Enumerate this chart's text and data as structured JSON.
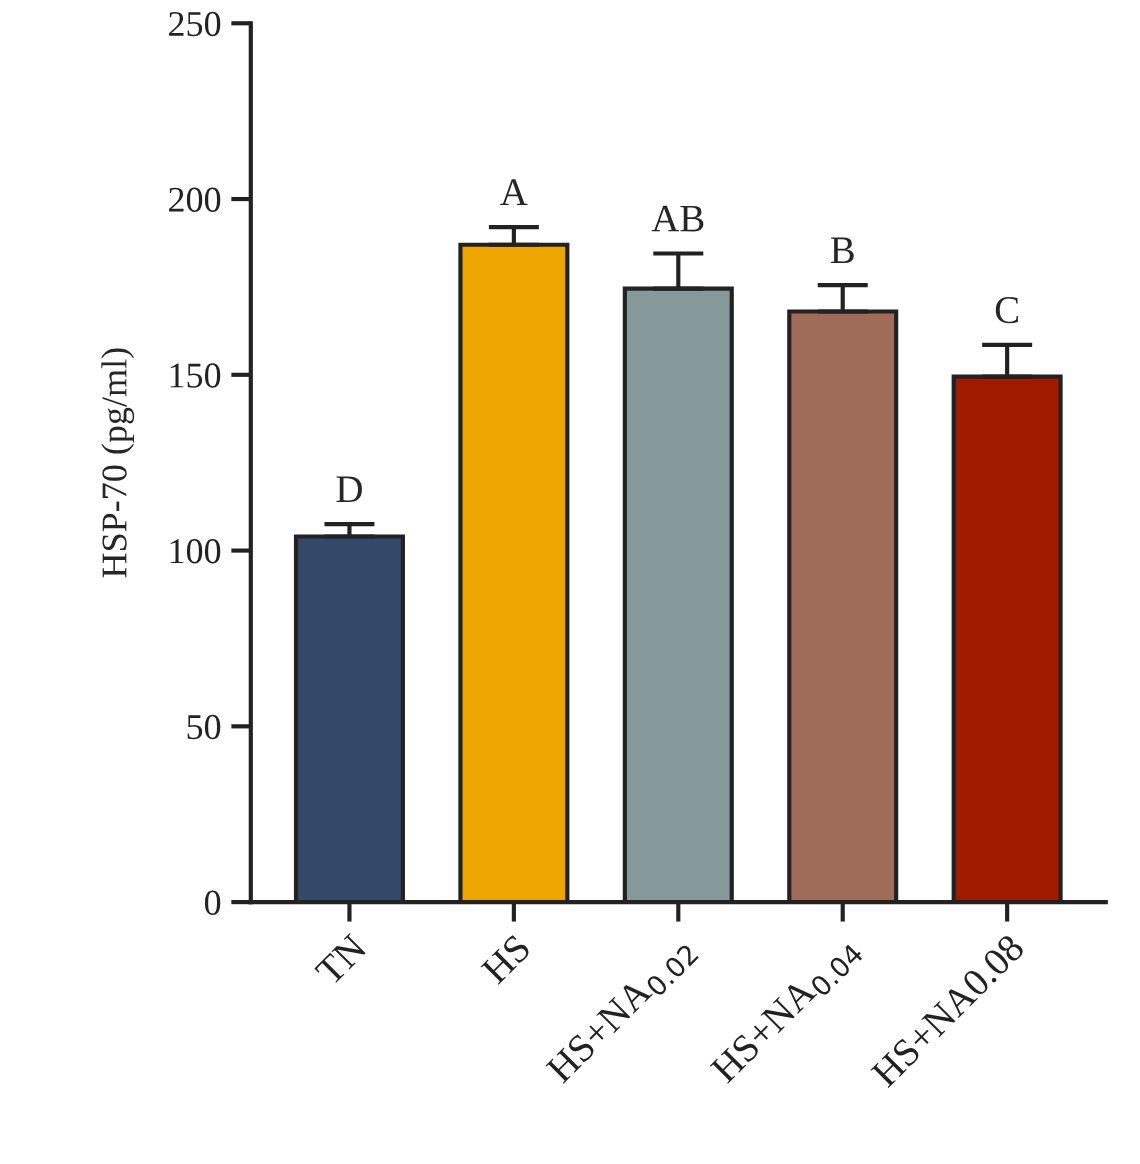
{
  "chart_data": {
    "type": "bar",
    "ylabel": "HSP-70 (pg/ml)",
    "categories": [
      "TN",
      "HS",
      "HS+NA$_{0.02}$",
      "HS+NA$_{0.04}$",
      "HS+NA0.08"
    ],
    "values": [
      104,
      187,
      174.5,
      168,
      149.5
    ],
    "colors": [
      "#34496a",
      "#eda500",
      "#85999a",
      "#a06c5a",
      "#a01a00"
    ],
    "errors": [
      [
        104,
        107.5
      ],
      [
        187,
        192
      ],
      [
        174.5,
        184.5
      ],
      [
        168,
        175.5
      ],
      [
        149.5,
        158.5
      ]
    ],
    "ylim": [
      0,
      250
    ],
    "yticks": [
      0,
      50,
      100,
      150,
      200,
      250
    ],
    "annotations": [
      {
        "text": "D",
        "x": "TN",
        "y": 107.5
      },
      {
        "text": "A",
        "x": "HS",
        "y": 192
      },
      {
        "text": "AB",
        "x": "HS+NA$_{0.02}$",
        "y": 184.5
      },
      {
        "text": "B",
        "x": "HS+NA$_{0.04}$",
        "y": 175.5
      },
      {
        "text": "C",
        "x": "HS+NA0.08",
        "y": 158.5
      }
    ],
    "grid": false
  }
}
